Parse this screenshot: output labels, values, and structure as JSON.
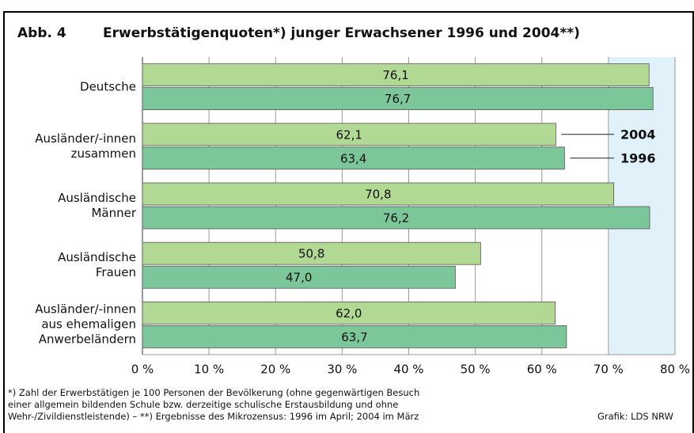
{
  "chart_data": {
    "type": "bar",
    "orientation": "horizontal",
    "figure_label": "Abb. 4",
    "title": "Erwerbstätigenquoten*) junger Erwachsener 1996 und 2004**)",
    "categories": [
      "Deutsche",
      "Ausländer/-innen\nzusammen",
      "Ausländische\nMänner",
      "Ausländische\nFrauen",
      "Ausländer/-innen\naus ehemaligen\nAnwerbeländern"
    ],
    "series": [
      {
        "name": "2004",
        "color": "#b2d993",
        "values": [
          76.1,
          62.1,
          70.8,
          50.8,
          62.0
        ],
        "value_labels": [
          "76,1",
          "62,1",
          "70,8",
          "50,8",
          "62,0"
        ]
      },
      {
        "name": "1996",
        "color": "#7cc799",
        "values": [
          76.7,
          63.4,
          76.2,
          47.0,
          63.7
        ],
        "value_labels": [
          "76,7",
          "63,4",
          "76,2",
          "47,0",
          "63,7"
        ]
      }
    ],
    "xlim": [
      0,
      80
    ],
    "xticks": [
      {
        "value": 0,
        "label": "0 %"
      },
      {
        "value": 10,
        "label": "10 %"
      },
      {
        "value": 20,
        "label": "20 %"
      },
      {
        "value": 30,
        "label": "30 %"
      },
      {
        "value": 40,
        "label": "40 %"
      },
      {
        "value": 50,
        "label": "50 %"
      },
      {
        "value": 60,
        "label": "60 %"
      },
      {
        "value": 70,
        "label": "70 %"
      },
      {
        "value": 80,
        "label": "80 %"
      }
    ],
    "grid": true,
    "highlight_band": [
      70,
      80
    ],
    "legend_category": 1,
    "notes": [
      "*) Zahl der Erwerbstätigen je 100 Personen der Bevölkerung (ohne gegenwärtigen Besuch",
      "einer allgemein bildenden Schule bzw. derzeitige schulische Erstausbildung und ohne",
      "Wehr-/Zivildienstleistende) – **) Ergebnisse des Mikrozensus: 1996 im April; 2004 im März"
    ],
    "source": "Grafik: LDS NRW"
  }
}
